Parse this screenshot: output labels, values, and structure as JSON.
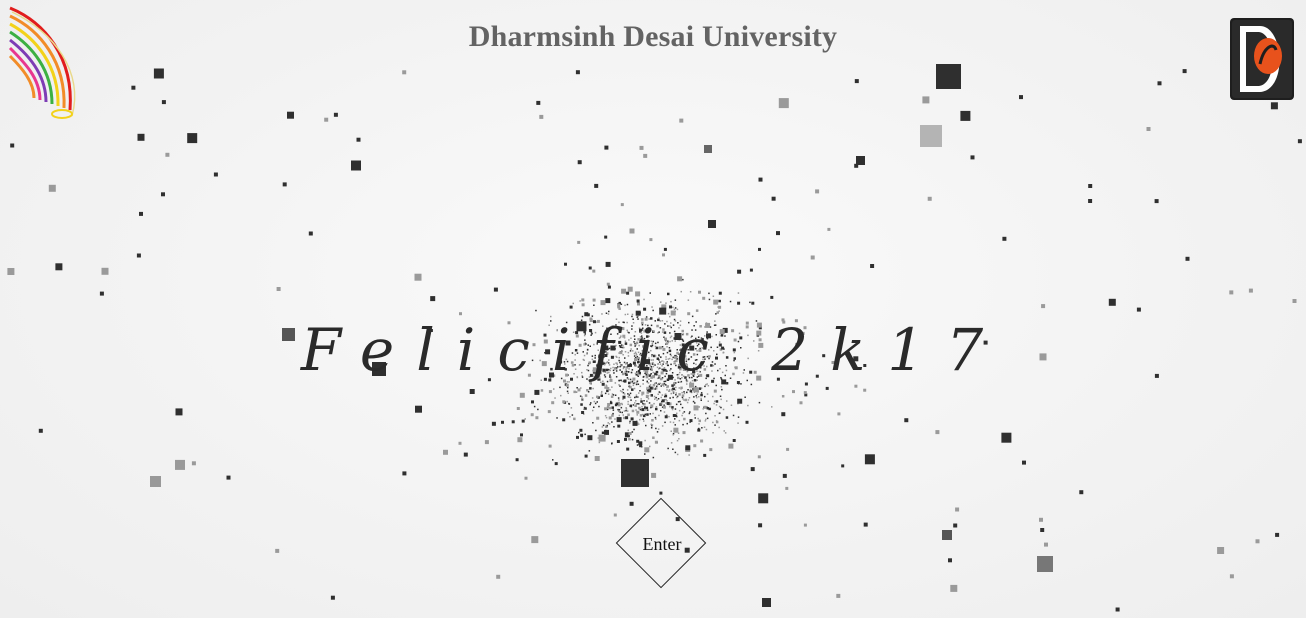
{
  "header": {
    "university_name": "Dharmsinh Desai University"
  },
  "main": {
    "event_title": "Felicific 2k17",
    "enter_label": "Enter"
  },
  "logos": {
    "left_icon": "feather-rainbow-logo-icon",
    "right_icon": "ddu-monogram-logo-icon"
  },
  "colors": {
    "title": "#636363",
    "particle_dark": "#2f2f2f",
    "particle_light": "#9a9a9a",
    "background": "#f4f4f4"
  }
}
